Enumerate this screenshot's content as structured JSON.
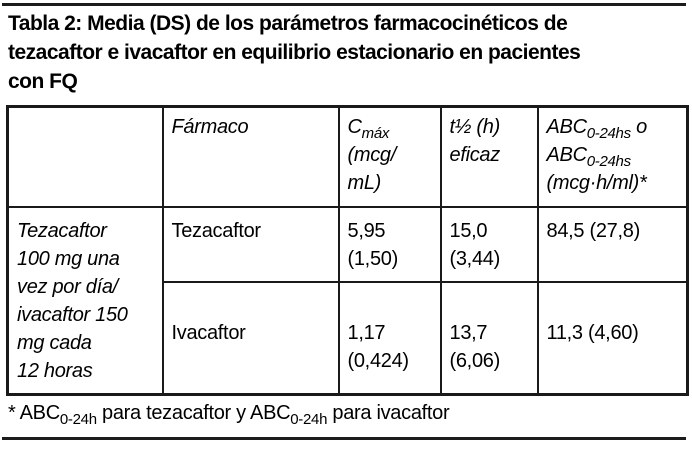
{
  "title": "Tabla 2: Media (DS) de los parámetros farmacocinéticos de\ntezacaftor e ivacaftor en equilibrio estacionario en pacientes\ncon FQ",
  "table": {
    "headers": {
      "empty": "",
      "farmaco": "Fármaco",
      "cmax": [
        {
          "t": "C"
        },
        {
          "t": "máx",
          "sub": true
        },
        {
          "t": "\n(mcg/\nmL)"
        }
      ],
      "thalf": "t½ (h)\neficaz",
      "abc": [
        {
          "t": "ABC"
        },
        {
          "t": "0-24hs",
          "sub": true
        },
        {
          "t": " o\nABC"
        },
        {
          "t": "0-24hs",
          "sub": true
        },
        {
          "t": "\n(mcg·h/ml)*"
        }
      ]
    },
    "regimen": "Tezacaftor\n100 mg una\nvez por día/\nivacaftor 150\nmg cada\n12 horas",
    "rows": [
      {
        "drug": "Tezacaftor",
        "cmax": "5,95\n(1,50)",
        "thalf": "15,0\n(3,44)",
        "abc": "84,5 (27,8)"
      },
      {
        "drug": "Ivacaftor",
        "cmax": "1,17\n(0,424)",
        "thalf": "13,7\n(6,06)",
        "abc": "11,3 (4,60)"
      }
    ]
  },
  "footnote": [
    {
      "t": "* ABC"
    },
    {
      "t": "0-24h",
      "sub": true
    },
    {
      "t": " para tezacaftor y ABC"
    },
    {
      "t": "0-24h",
      "sub": true
    },
    {
      "t": " para ivacaftor"
    }
  ],
  "colors": {
    "background": "#ffffff",
    "text": "#000000",
    "border": "#1a1a1a",
    "rule": "#1c1c1c"
  }
}
